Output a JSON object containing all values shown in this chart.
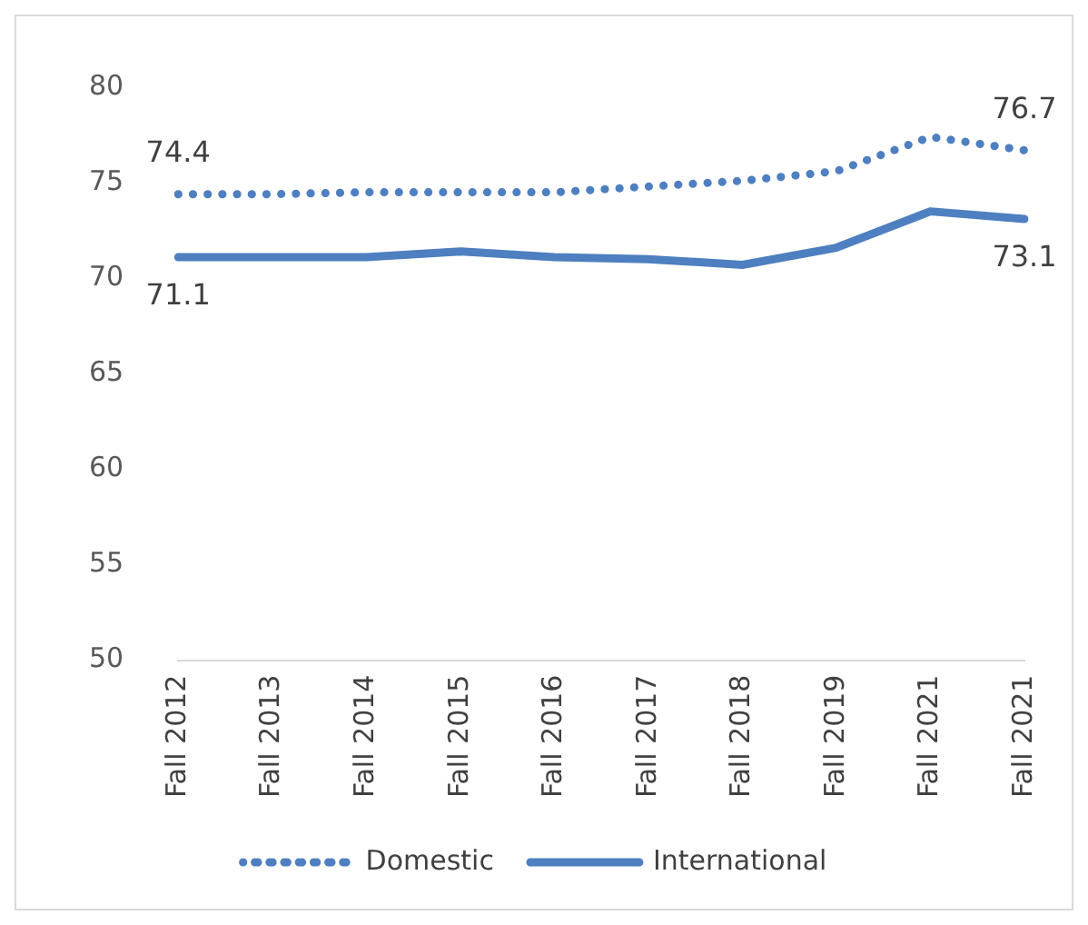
{
  "chart_data": {
    "type": "line",
    "categories": [
      "Fall 2012",
      "Fall 2013",
      "Fall 2014",
      "Fall 2015",
      "Fall 2016",
      "Fall 2017",
      "Fall 2018",
      "Fall 2019",
      "Fall 2021",
      "Fall 2021"
    ],
    "series": [
      {
        "name": "Domestic",
        "color": "#4e7fc0",
        "line_style": "dotted",
        "values": [
          74.4,
          74.4,
          74.5,
          74.5,
          74.5,
          74.8,
          75.1,
          75.6,
          77.4,
          76.7
        ],
        "value_labels": [
          "74.4",
          null,
          null,
          null,
          null,
          null,
          null,
          null,
          null,
          "76.7"
        ]
      },
      {
        "name": "International",
        "color": "#4e7fc0",
        "line_style": "solid",
        "values": [
          71.1,
          71.1,
          71.1,
          71.4,
          71.1,
          71.0,
          70.7,
          71.6,
          73.5,
          73.1
        ],
        "value_labels": [
          "71.1",
          null,
          null,
          null,
          null,
          null,
          null,
          null,
          null,
          "73.1"
        ]
      }
    ],
    "ylim": [
      50,
      80
    ],
    "yticks": [
      50,
      55,
      60,
      65,
      70,
      75,
      80
    ],
    "grid": false,
    "legend": "bottom",
    "marker": "none"
  }
}
